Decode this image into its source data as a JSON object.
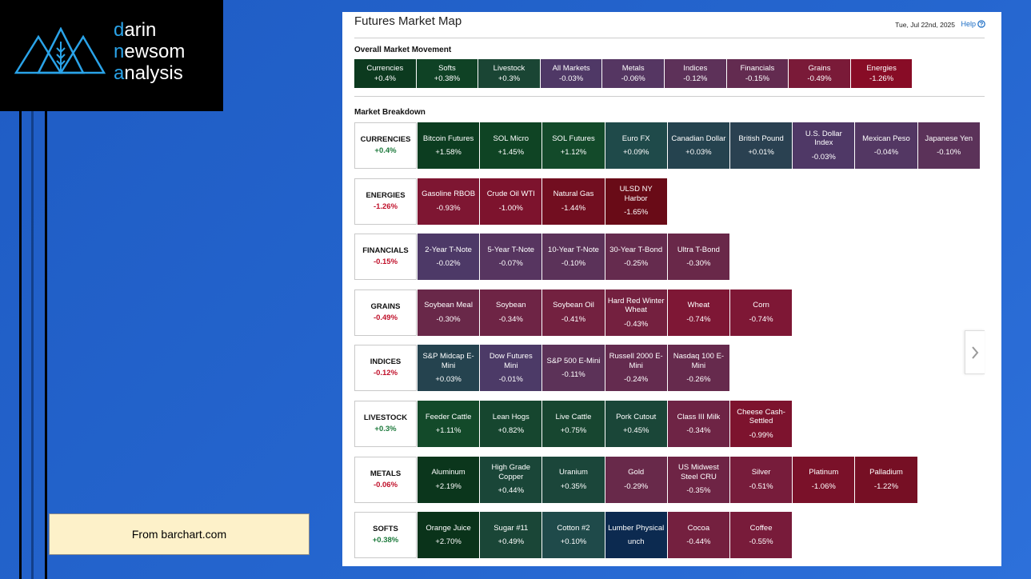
{
  "logo": {
    "lines": [
      "darin",
      "newsom",
      "analysis"
    ]
  },
  "source_note": "From barchart.com",
  "map": {
    "title": "Futures Market Map",
    "date": "Tue, Jul 22nd, 2025",
    "help": "Help",
    "overall": {
      "heading": "Overall Market Movement",
      "tiles": [
        {
          "name": "Currencies",
          "change": "+0.4%",
          "color": "#0c3a1f"
        },
        {
          "name": "Softs",
          "change": "+0.38%",
          "color": "#0f4225"
        },
        {
          "name": "Livestock",
          "change": "+0.3%",
          "color": "#1a4534"
        },
        {
          "name": "All Markets",
          "change": "-0.03%",
          "color": "#4f3866"
        },
        {
          "name": "Metals",
          "change": "-0.06%",
          "color": "#553662"
        },
        {
          "name": "Indices",
          "change": "-0.12%",
          "color": "#5d3159"
        },
        {
          "name": "Financials",
          "change": "-0.15%",
          "color": "#632b50"
        },
        {
          "name": "Grains",
          "change": "-0.49%",
          "color": "#7a1a38"
        },
        {
          "name": "Energies",
          "change": "-1.26%",
          "color": "#880c26"
        }
      ]
    },
    "breakdown": {
      "heading": "Market Breakdown",
      "groups": [
        {
          "name": "CURRENCIES",
          "change": "+0.4%",
          "tiles": [
            {
              "name": "Bitcoin Futures",
              "change": "+1.58%",
              "color": "#0c3d20"
            },
            {
              "name": "SOL Micro",
              "change": "+1.45%",
              "color": "#0f4424"
            },
            {
              "name": "SOL Futures",
              "change": "+1.12%",
              "color": "#134a2a"
            },
            {
              "name": "Euro FX",
              "change": "+0.09%",
              "color": "#1f4a4a"
            },
            {
              "name": "Canadian Dollar",
              "change": "+0.03%",
              "color": "#25434f"
            },
            {
              "name": "British Pound",
              "change": "+0.01%",
              "color": "#2a4151"
            },
            {
              "name": "U.S. Dollar Index",
              "change": "-0.03%",
              "color": "#4f3866"
            },
            {
              "name": "Mexican Peso",
              "change": "-0.04%",
              "color": "#533763"
            },
            {
              "name": "Japanese Yen",
              "change": "-0.10%",
              "color": "#5b3259"
            }
          ]
        },
        {
          "name": "ENERGIES",
          "change": "-1.26%",
          "tiles": [
            {
              "name": "Gasoline RBOB",
              "change": "-0.93%",
              "color": "#7e1632"
            },
            {
              "name": "Crude Oil WTI",
              "change": "-1.00%",
              "color": "#7d132d"
            },
            {
              "name": "Natural Gas",
              "change": "-1.44%",
              "color": "#720e20"
            },
            {
              "name": "ULSD NY Harbor",
              "change": "-1.65%",
              "color": "#690b17"
            }
          ]
        },
        {
          "name": "FINANCIALS",
          "change": "-0.15%",
          "tiles": [
            {
              "name": "2-Year T-Note",
              "change": "-0.02%",
              "color": "#4d3967"
            },
            {
              "name": "5-Year T-Note",
              "change": "-0.07%",
              "color": "#573560"
            },
            {
              "name": "10-Year T-Note",
              "change": "-0.10%",
              "color": "#5b3259"
            },
            {
              "name": "30-Year T-Bond",
              "change": "-0.25%",
              "color": "#652b4e"
            },
            {
              "name": "Ultra T-Bond",
              "change": "-0.30%",
              "color": "#692849"
            }
          ]
        },
        {
          "name": "GRAINS",
          "change": "-0.49%",
          "tiles": [
            {
              "name": "Soybean Meal",
              "change": "-0.30%",
              "color": "#692849"
            },
            {
              "name": "Soybean",
              "change": "-0.34%",
              "color": "#6e2445"
            },
            {
              "name": "Soybean Oil",
              "change": "-0.41%",
              "color": "#732140"
            },
            {
              "name": "Hard Red Winter Wheat",
              "change": "-0.43%",
              "color": "#74203f"
            },
            {
              "name": "Wheat",
              "change": "-0.74%",
              "color": "#7e1735"
            },
            {
              "name": "Corn",
              "change": "-0.74%",
              "color": "#7e1735"
            }
          ]
        },
        {
          "name": "INDICES",
          "change": "-0.12%",
          "tiles": [
            {
              "name": "S&P Midcap E-Mini",
              "change": "+0.03%",
              "color": "#25434f"
            },
            {
              "name": "Dow Futures Mini",
              "change": "-0.01%",
              "color": "#4c3a67"
            },
            {
              "name": "S&P 500 E-Mini",
              "change": "-0.11%",
              "color": "#5c3258"
            },
            {
              "name": "Russell 2000 E-Mini",
              "change": "-0.24%",
              "color": "#642b4f"
            },
            {
              "name": "Nasdaq 100 E-Mini",
              "change": "-0.26%",
              "color": "#662a4d"
            }
          ]
        },
        {
          "name": "LIVESTOCK",
          "change": "+0.3%",
          "tiles": [
            {
              "name": "Feeder Cattle",
              "change": "+1.11%",
              "color": "#134a2a"
            },
            {
              "name": "Lean Hogs",
              "change": "+0.82%",
              "color": "#16462f"
            },
            {
              "name": "Live Cattle",
              "change": "+0.75%",
              "color": "#174630"
            },
            {
              "name": "Pork Cutout",
              "change": "+0.45%",
              "color": "#1a4638"
            },
            {
              "name": "Class III Milk",
              "change": "-0.34%",
              "color": "#6e2445"
            },
            {
              "name": "Cheese Cash-Settled",
              "change": "-0.99%",
              "color": "#7d132e"
            }
          ]
        },
        {
          "name": "METALS",
          "change": "-0.06%",
          "tiles": [
            {
              "name": "Aluminum",
              "change": "+2.19%",
              "color": "#0b361c"
            },
            {
              "name": "High Grade Copper",
              "change": "+0.44%",
              "color": "#1a4638"
            },
            {
              "name": "Uranium",
              "change": "+0.35%",
              "color": "#1b463a"
            },
            {
              "name": "Gold",
              "change": "-0.29%",
              "color": "#68294a"
            },
            {
              "name": "US Midwest Steel CRU",
              "change": "-0.35%",
              "color": "#6e2445"
            },
            {
              "name": "Silver",
              "change": "-0.51%",
              "color": "#771c3b"
            },
            {
              "name": "Platinum",
              "change": "-1.06%",
              "color": "#7a1129"
            },
            {
              "name": "Palladium",
              "change": "-1.22%",
              "color": "#760f24"
            }
          ]
        },
        {
          "name": "SOFTS",
          "change": "+0.38%",
          "tiles": [
            {
              "name": "Orange Juice",
              "change": "+2.70%",
              "color": "#0a331a"
            },
            {
              "name": "Sugar #11",
              "change": "+0.49%",
              "color": "#1a4637"
            },
            {
              "name": "Cotton #2",
              "change": "+0.10%",
              "color": "#1f4a4a"
            },
            {
              "name": "Lumber Physical",
              "change": "unch",
              "color": "#0c2a50"
            },
            {
              "name": "Cocoa",
              "change": "-0.44%",
              "color": "#74203f"
            },
            {
              "name": "Coffee",
              "change": "-0.55%",
              "color": "#781b3a"
            }
          ]
        }
      ]
    }
  }
}
